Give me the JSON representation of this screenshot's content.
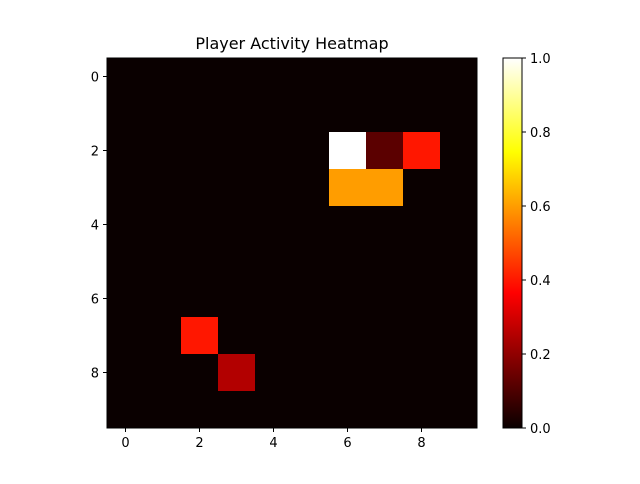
{
  "chart_data": {
    "type": "heatmap",
    "title": "Player Activity Heatmap",
    "xlabel": "",
    "ylabel": "",
    "rows": 10,
    "cols": 10,
    "x_ticks": [
      0,
      2,
      4,
      6,
      8
    ],
    "y_ticks": [
      0,
      2,
      4,
      6,
      8
    ],
    "colormap": "hot",
    "vmin": 0.0,
    "vmax": 1.0,
    "colorbar_ticks": [
      "0.0",
      "0.2",
      "0.4",
      "0.6",
      "0.8",
      "1.0"
    ],
    "values": [
      [
        0,
        0,
        0,
        0,
        0,
        0,
        0,
        0,
        0,
        0
      ],
      [
        0,
        0,
        0,
        0,
        0,
        0,
        0,
        0,
        0,
        0
      ],
      [
        0,
        0,
        0,
        0,
        0,
        0,
        1.0,
        0.12,
        0.4,
        0
      ],
      [
        0,
        0,
        0,
        0,
        0,
        0,
        0.6,
        0.6,
        0,
        0
      ],
      [
        0,
        0,
        0,
        0,
        0,
        0,
        0,
        0,
        0,
        0
      ],
      [
        0,
        0,
        0,
        0,
        0,
        0,
        0,
        0,
        0,
        0
      ],
      [
        0,
        0,
        0,
        0,
        0,
        0,
        0,
        0,
        0,
        0
      ],
      [
        0,
        0,
        0.4,
        0,
        0,
        0,
        0,
        0,
        0,
        0
      ],
      [
        0,
        0,
        0,
        0.25,
        0,
        0,
        0,
        0,
        0,
        0
      ],
      [
        0,
        0,
        0,
        0,
        0,
        0,
        0,
        0,
        0,
        0
      ]
    ]
  }
}
